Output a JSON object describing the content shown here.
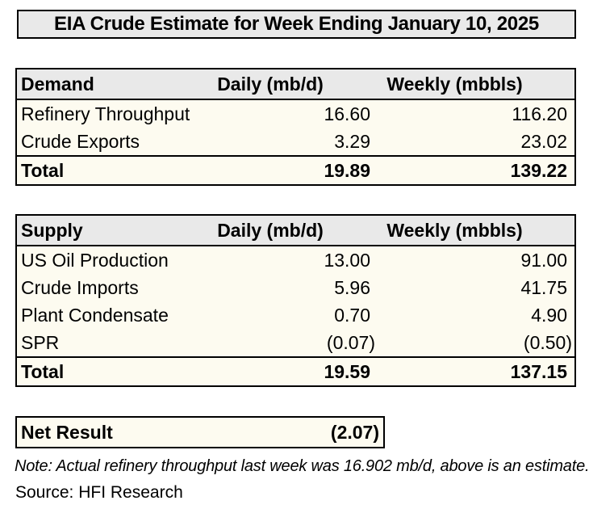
{
  "title": "EIA Crude Estimate for Week Ending January 10, 2025",
  "demand": {
    "header": {
      "label": "Demand",
      "daily": "Daily (mb/d)",
      "weekly": "Weekly (mbbls)"
    },
    "rows": [
      {
        "label": "Refinery Throughput",
        "daily": "16.60",
        "weekly": "116.20"
      },
      {
        "label": "Crude Exports",
        "daily": "3.29",
        "weekly": "23.02"
      }
    ],
    "total": {
      "label": "Total",
      "daily": "19.89",
      "weekly": "139.22"
    }
  },
  "supply": {
    "header": {
      "label": "Supply",
      "daily": "Daily (mb/d)",
      "weekly": "Weekly (mbbls)"
    },
    "rows": [
      {
        "label": "US Oil Production",
        "daily": "13.00",
        "weekly": "91.00"
      },
      {
        "label": "Crude Imports",
        "daily": "5.96",
        "weekly": "41.75"
      },
      {
        "label": "Plant Condensate",
        "daily": "0.70",
        "weekly": "4.90"
      },
      {
        "label": "SPR",
        "daily": "(0.07)",
        "weekly": "(0.50)"
      }
    ],
    "total": {
      "label": "Total",
      "daily": "19.59",
      "weekly": "137.15"
    }
  },
  "net_result": {
    "label": "Net Result",
    "value": "(2.07)"
  },
  "note": "Note: Actual refinery throughput last week was 16.902 mb/d, above is an estimate.",
  "source": "Source: HFI Research",
  "colors": {
    "header_bg": "#e9e9e9",
    "cell_bg": "#fdfbf0",
    "border": "#000000",
    "text": "#000000",
    "page_bg": "#ffffff"
  },
  "chart_data": [
    {
      "type": "table",
      "title": "Demand",
      "columns": [
        "Demand",
        "Daily (mb/d)",
        "Weekly (mbbls)"
      ],
      "rows": [
        [
          "Refinery Throughput",
          16.6,
          116.2
        ],
        [
          "Crude Exports",
          3.29,
          23.02
        ],
        [
          "Total",
          19.89,
          139.22
        ]
      ]
    },
    {
      "type": "table",
      "title": "Supply",
      "columns": [
        "Supply",
        "Daily (mb/d)",
        "Weekly (mbbls)"
      ],
      "rows": [
        [
          "US Oil Production",
          13.0,
          91.0
        ],
        [
          "Crude Imports",
          5.96,
          41.75
        ],
        [
          "Plant Condensate",
          0.7,
          4.9
        ],
        [
          "SPR",
          -0.07,
          -0.5
        ],
        [
          "Total",
          19.59,
          137.15
        ]
      ]
    },
    {
      "type": "table",
      "title": "Net Result",
      "columns": [
        "Label",
        "Value"
      ],
      "rows": [
        [
          "Net Result",
          -2.07
        ]
      ]
    }
  ]
}
